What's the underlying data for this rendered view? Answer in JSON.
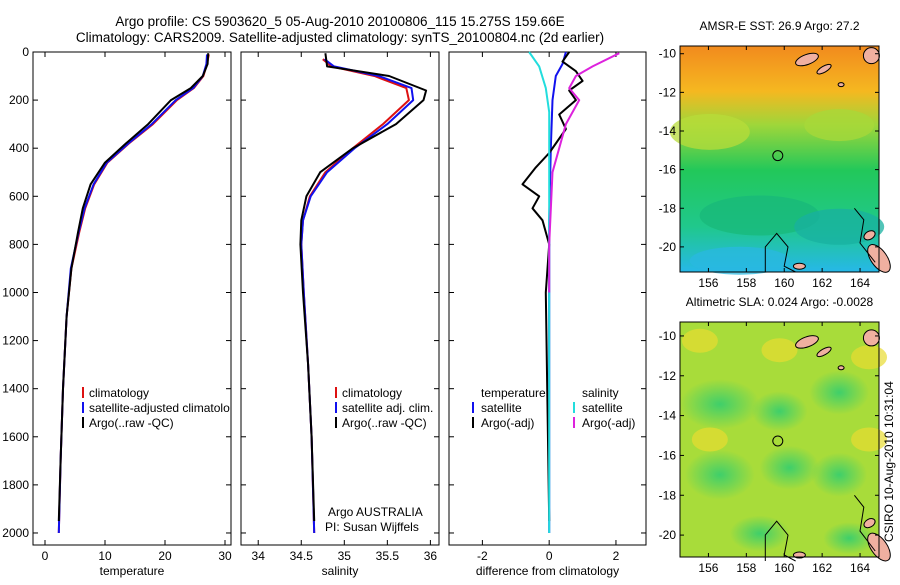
{
  "header": {
    "line1": "Argo profile: CS 5903620_5 05-Aug-2010 20100806_115 15.275S 159.66E",
    "line2": "Climatology: CARS2009. Satellite-adjusted climatology: synTS_20100804.nc (2d earlier)"
  },
  "credit": {
    "line1": "Argo AUSTRALIA",
    "line2": "PI: Susan Wijffels"
  },
  "side_stamp": "CSIRO 10-Aug-2010 10:31:04",
  "colors": {
    "climatology": "#dd1111",
    "satellite": "#1111ee",
    "argo": "#000000",
    "salinity_satellite": "#22dddd",
    "salinity_argo": "#dd22dd"
  },
  "chart_data": [
    {
      "type": "line",
      "id": "temperature",
      "xlabel": "temperature",
      "ylabel": "",
      "xlim": [
        -2,
        31
      ],
      "ylim": [
        0,
        2050
      ],
      "y_reversed": true,
      "xticks": [
        0,
        10,
        20,
        30
      ],
      "yticks": [
        0,
        200,
        400,
        600,
        800,
        1000,
        1200,
        1400,
        1600,
        1800,
        2000
      ],
      "legend": [
        "climatology",
        "satellite-adjusted climatolo",
        "Argo(..raw -QC)"
      ],
      "series": [
        {
          "name": "climatology",
          "color_key": "climatology",
          "x": [
            27.3,
            27.0,
            26.4,
            24.8,
            22.0,
            18.0,
            14.0,
            10.4,
            8.2,
            6.7,
            5.7,
            4.4,
            3.6,
            3.0,
            2.6,
            2.3
          ],
          "y": [
            10,
            50,
            100,
            150,
            200,
            300,
            380,
            460,
            550,
            650,
            750,
            900,
            1100,
            1400,
            1700,
            2000
          ]
        },
        {
          "name": "satellite-adjusted climatolo",
          "color_key": "satellite",
          "x": [
            27.0,
            26.9,
            26.3,
            24.7,
            21.8,
            17.8,
            13.9,
            10.3,
            8.1,
            6.6,
            5.6,
            4.3,
            3.6,
            3.0,
            2.6,
            2.3
          ],
          "y": [
            10,
            50,
            100,
            150,
            200,
            300,
            380,
            460,
            550,
            650,
            750,
            900,
            1100,
            1400,
            1700,
            2000
          ]
        },
        {
          "name": "Argo(..raw -QC)",
          "color_key": "argo",
          "x": [
            27.2,
            27.1,
            26.3,
            24.3,
            21.0,
            17.2,
            13.5,
            10.0,
            7.6,
            6.3,
            5.5,
            4.4,
            3.6,
            3.0,
            2.6,
            2.3
          ],
          "y": [
            5,
            50,
            100,
            150,
            200,
            300,
            380,
            460,
            550,
            650,
            750,
            900,
            1100,
            1400,
            1700,
            1950
          ]
        }
      ]
    },
    {
      "type": "line",
      "id": "salinity",
      "xlabel": "salinity",
      "ylabel": "",
      "xlim": [
        33.8,
        36.1
      ],
      "ylim": [
        0,
        2050
      ],
      "y_reversed": true,
      "xticks": [
        34,
        34.5,
        35,
        35.5,
        36
      ],
      "legend": [
        "climatology",
        "satellite adj. clim.",
        "Argo(..raw -QC)"
      ],
      "series": [
        {
          "name": "climatology",
          "color_key": "climatology",
          "x": [
            34.75,
            34.85,
            35.35,
            35.72,
            35.75,
            35.45,
            35.1,
            34.78,
            34.6,
            34.52,
            34.5,
            34.53,
            34.58,
            34.62,
            34.65
          ],
          "y": [
            30,
            60,
            100,
            150,
            200,
            300,
            400,
            500,
            600,
            700,
            800,
            1000,
            1300,
            1600,
            2000
          ]
        },
        {
          "name": "satellite adj. clim.",
          "color_key": "satellite",
          "x": [
            34.77,
            34.88,
            35.4,
            35.78,
            35.8,
            35.5,
            35.12,
            34.8,
            34.61,
            34.52,
            34.5,
            34.53,
            34.58,
            34.62,
            34.65
          ],
          "y": [
            30,
            60,
            100,
            150,
            200,
            300,
            400,
            500,
            600,
            700,
            800,
            1000,
            1300,
            1600,
            2000
          ]
        },
        {
          "name": "Argo(..raw -QC)",
          "color_key": "argo",
          "x": [
            34.78,
            34.8,
            35.52,
            35.95,
            35.92,
            35.6,
            35.1,
            34.72,
            34.56,
            34.5,
            34.49,
            34.52,
            34.58,
            34.62,
            34.65
          ],
          "y": [
            5,
            60,
            100,
            160,
            200,
            300,
            400,
            500,
            600,
            700,
            800,
            1000,
            1300,
            1600,
            1950
          ]
        }
      ]
    },
    {
      "type": "line",
      "id": "difference",
      "xlabel": "difference from climatology",
      "ylabel": "",
      "xlim": [
        -3.0,
        2.9
      ],
      "ylim": [
        0,
        2050
      ],
      "y_reversed": true,
      "xticks": [
        -2,
        0,
        2
      ],
      "legend_left_heading": "temperature",
      "legend_left": [
        "satellite",
        "Argo(-adj)"
      ],
      "legend_right_heading": "salinity",
      "legend_right": [
        "satellite",
        "Argo(-adj)"
      ],
      "series": [
        {
          "name": "satellite",
          "group": "temperature",
          "color_key": "satellite",
          "x": [
            0.5,
            0.4,
            0.2,
            0.1,
            0.05,
            0.0,
            0.0,
            0.0
          ],
          "y": [
            0,
            50,
            100,
            200,
            400,
            700,
            1200,
            2000
          ]
        },
        {
          "name": "Argo(-adj)",
          "group": "temperature",
          "color_key": "argo",
          "x": [
            0.6,
            0.4,
            0.8,
            1.0,
            0.6,
            0.8,
            0.3,
            0.5,
            0.0,
            -0.4,
            -0.8,
            -0.3,
            -0.5,
            -0.2,
            0.0,
            -0.1,
            0.0
          ],
          "y": [
            0,
            40,
            80,
            120,
            160,
            200,
            260,
            320,
            420,
            480,
            550,
            600,
            650,
            700,
            800,
            1000,
            1950
          ]
        },
        {
          "name": "satellite",
          "group": "salinity",
          "color_key": "salinity_satellite",
          "x": [
            -0.6,
            -0.3,
            -0.1,
            0.0,
            0.0,
            0.0,
            0.0
          ],
          "y": [
            0,
            60,
            150,
            250,
            400,
            800,
            2000
          ]
        },
        {
          "name": "Argo(-adj)",
          "group": "salinity",
          "color_key": "salinity_argo",
          "x": [
            2.1,
            1.3,
            0.8,
            0.6,
            0.9,
            0.5,
            0.3,
            0.1,
            0.0,
            0.0
          ],
          "y": [
            5,
            60,
            100,
            150,
            200,
            300,
            400,
            500,
            800,
            1000
          ]
        }
      ]
    }
  ],
  "maps": [
    {
      "id": "sst",
      "title": "AMSR-E SST: 26.9  Argo: 27.2",
      "xticks": [
        156,
        158,
        160,
        162,
        164
      ],
      "yticks": [
        -10,
        -12,
        -14,
        -16,
        -18,
        -20
      ],
      "xlim": [
        154.5,
        165
      ],
      "ylim": [
        -21.3,
        -9.6
      ],
      "profile": [
        159.66,
        -15.275
      ]
    },
    {
      "id": "sla",
      "title": "Altimetric SLA: 0.024  Argo: -0.0028",
      "xticks": [
        156,
        158,
        160,
        162,
        164
      ],
      "yticks": [
        -10,
        -12,
        -14,
        -16,
        -18,
        -20
      ],
      "xlim": [
        154.5,
        165
      ],
      "ylim": [
        -21.1,
        -9.3
      ],
      "profile": [
        159.66,
        -15.275
      ]
    }
  ]
}
